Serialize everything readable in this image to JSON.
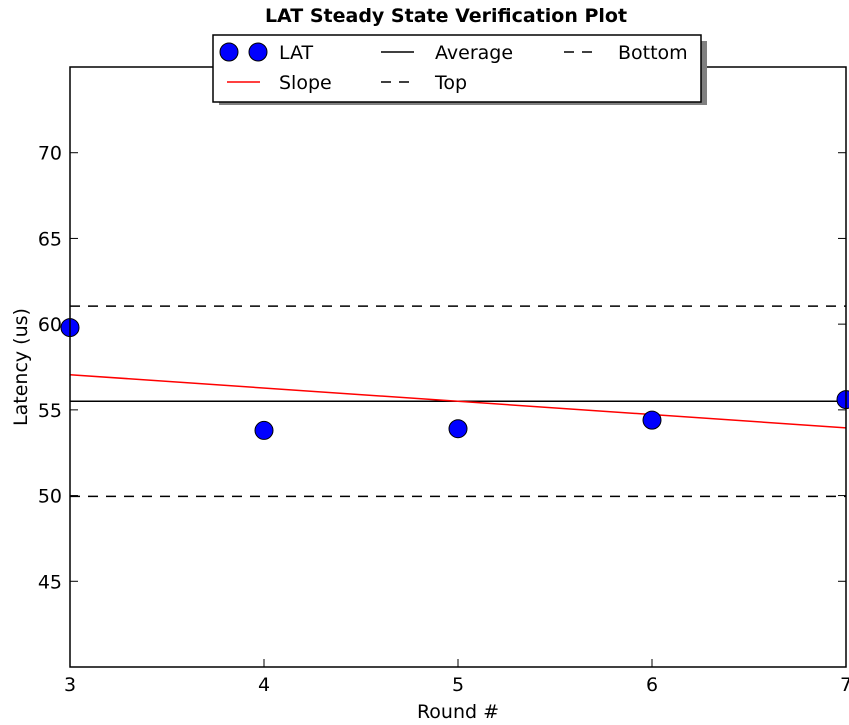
{
  "chart_data": {
    "type": "scatter",
    "title": "LAT Steady State Verification Plot",
    "xlabel": "Round #",
    "ylabel": "Latency (us)",
    "xlim": [
      3,
      7
    ],
    "ylim": [
      40,
      75
    ],
    "xticks": [
      3,
      4,
      5,
      6,
      7
    ],
    "yticks": [
      45,
      50,
      55,
      60,
      65,
      70
    ],
    "grid": false,
    "legend_position": "top-center",
    "legend_entries": [
      {
        "key": "lat",
        "label": "LAT"
      },
      {
        "key": "average",
        "label": "Average"
      },
      {
        "key": "bottom",
        "label": "Bottom"
      },
      {
        "key": "slope",
        "label": "Slope"
      },
      {
        "key": "top",
        "label": "Top"
      }
    ],
    "series": {
      "lat": {
        "name": "LAT",
        "color": "#0000ff",
        "x": [
          3,
          4,
          5,
          6,
          7
        ],
        "y": [
          59.8,
          53.8,
          53.9,
          54.4,
          55.6
        ]
      },
      "slope": {
        "name": "Slope",
        "color": "#ff0000",
        "x": [
          3,
          7
        ],
        "y": [
          57.05,
          53.95
        ]
      },
      "average": {
        "name": "Average",
        "color": "#000000",
        "y": 55.5
      },
      "top": {
        "name": "Top",
        "color": "#000000",
        "y": 61.05
      },
      "bottom": {
        "name": "Bottom",
        "color": "#000000",
        "y": 49.95
      }
    }
  }
}
